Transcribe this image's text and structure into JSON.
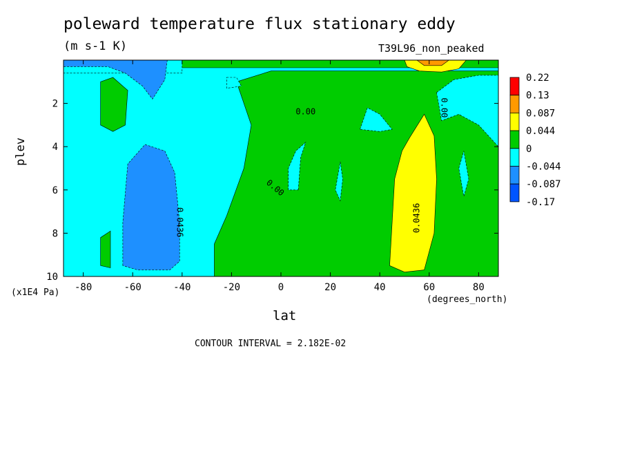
{
  "title": "poleward temperature flux stationary eddy",
  "units": "(m s-1 K)",
  "run_name": "T39L96_non_peaked",
  "contour_interval_text": "CONTOUR INTERVAL = 2.182E-02",
  "chart_data": {
    "type": "heatmap",
    "title": "poleward temperature flux stationary eddy",
    "subtitle": "(m s-1 K)",
    "xlabel": "lat",
    "xunits": "(degrees_north)",
    "ylabel": "plev",
    "yunits": "(x1E4 Pa)",
    "xlim": [
      -88,
      88
    ],
    "ylim": [
      0,
      10
    ],
    "y_inverted": true,
    "x_ticks": [
      -80,
      -60,
      -40,
      -20,
      0,
      20,
      40,
      60,
      80
    ],
    "x_tick_labels": [
      "-80",
      "-60",
      "-40",
      "-20",
      "0",
      "20",
      "40",
      "60",
      "80"
    ],
    "y_ticks": [
      2,
      4,
      6,
      8,
      10
    ],
    "y_tick_labels": [
      "2",
      "4",
      "6",
      "8",
      "10"
    ],
    "background_level": -0.022,
    "colorbar": {
      "labels": [
        "0.22",
        "0.13",
        "0.087",
        "0.044",
        "0",
        "-0.044",
        "-0.087",
        "-0.17"
      ],
      "colors": [
        "#ff0000",
        "#ff9a00",
        "#ffff00",
        "#00cc00",
        "#00ffff",
        "#1e90ff",
        "#0055ff"
      ]
    },
    "regions": [
      {
        "value": 0.02,
        "color": "#00cc00",
        "polygon": [
          [
            -27,
            10
          ],
          [
            -27,
            8.5
          ],
          [
            -22,
            7.2
          ],
          [
            -15,
            5
          ],
          [
            -12,
            3
          ],
          [
            -18,
            1
          ],
          [
            -4,
            0.5
          ],
          [
            20,
            0.5
          ],
          [
            88,
            0.5
          ],
          [
            88,
            10
          ]
        ]
      },
      {
        "value": 0.02,
        "color": "#00cc00",
        "polygon": [
          [
            -88,
            10
          ],
          [
            -88,
            0
          ],
          [
            88,
            0
          ],
          [
            88,
            0.35
          ],
          [
            -88,
            0.35
          ]
        ]
      },
      {
        "value": -0.02,
        "color": "#00ffff",
        "polygon": [
          [
            -88,
            0
          ],
          [
            -40,
            0
          ],
          [
            -40,
            0.6
          ],
          [
            -88,
            0.6
          ]
        ]
      },
      {
        "value": 0.02,
        "color": "#00cc00",
        "polygon": [
          [
            -73,
            3
          ],
          [
            -73,
            1
          ],
          [
            -68,
            0.8
          ],
          [
            -62,
            1.4
          ],
          [
            -63,
            3
          ],
          [
            -68,
            3.3
          ]
        ]
      },
      {
        "value": 0.02,
        "color": "#00cc00",
        "polygon": [
          [
            -73,
            9.5
          ],
          [
            -73,
            8.2
          ],
          [
            -69,
            7.9
          ],
          [
            -69,
            9.6
          ]
        ]
      },
      {
        "value": -0.065,
        "color": "#1e90ff",
        "polygon": [
          [
            -64,
            9.5
          ],
          [
            -64,
            7.5
          ],
          [
            -62,
            4.8
          ],
          [
            -55,
            3.9
          ],
          [
            -47,
            4.2
          ],
          [
            -43,
            5.2
          ],
          [
            -41,
            7.5
          ],
          [
            -41,
            9.3
          ],
          [
            -45,
            9.7
          ],
          [
            -58,
            9.7
          ]
        ]
      },
      {
        "value": -0.065,
        "color": "#1e90ff",
        "polygon": [
          [
            -88,
            0
          ],
          [
            -46,
            0
          ],
          [
            -47,
            0.9
          ],
          [
            -52,
            1.8
          ],
          [
            -56,
            1.2
          ],
          [
            -63,
            0.6
          ],
          [
            -70,
            0.3
          ],
          [
            -88,
            0.3
          ]
        ]
      },
      {
        "value": -0.02,
        "color": "#00ffff",
        "polygon": [
          [
            7,
            6
          ],
          [
            8,
            4.5
          ],
          [
            10,
            3.8
          ],
          [
            6,
            4.2
          ],
          [
            3,
            5
          ],
          [
            3,
            6
          ]
        ]
      },
      {
        "value": -0.02,
        "color": "#00ffff",
        "polygon": [
          [
            -22,
            0.8
          ],
          [
            -18,
            0.8
          ],
          [
            -16,
            1.2
          ],
          [
            -22,
            1.3
          ]
        ]
      },
      {
        "value": -0.02,
        "color": "#00ffff",
        "polygon": [
          [
            32,
            3.2
          ],
          [
            35,
            2.2
          ],
          [
            40,
            2.5
          ],
          [
            45,
            3.2
          ],
          [
            40,
            3.3
          ]
        ]
      },
      {
        "value": -0.02,
        "color": "#00ffff",
        "polygon": [
          [
            24,
            4.7
          ],
          [
            25,
            5.5
          ],
          [
            24,
            6.5
          ],
          [
            22,
            6
          ]
        ]
      },
      {
        "value": -0.02,
        "color": "#00ffff",
        "polygon": [
          [
            63,
            1.5
          ],
          [
            70,
            0.9
          ],
          [
            80,
            0.7
          ],
          [
            88,
            0.7
          ],
          [
            88,
            4
          ],
          [
            80,
            3
          ],
          [
            72,
            2.5
          ],
          [
            65,
            2.8
          ]
        ]
      },
      {
        "value": -0.02,
        "color": "#00ffff",
        "polygon": [
          [
            72,
            5
          ],
          [
            74,
            4.2
          ],
          [
            76,
            5.5
          ],
          [
            74,
            6.3
          ]
        ]
      },
      {
        "value": 0.065,
        "color": "#ffff00",
        "polygon": [
          [
            44,
            9.5
          ],
          [
            45,
            7.5
          ],
          [
            46,
            5.5
          ],
          [
            49,
            4.2
          ],
          [
            52,
            3.6
          ],
          [
            58,
            2.5
          ],
          [
            62,
            3.5
          ],
          [
            63,
            5.5
          ],
          [
            62,
            8
          ],
          [
            58,
            9.7
          ],
          [
            50,
            9.8
          ]
        ]
      },
      {
        "value": 0.065,
        "color": "#ffff00",
        "polygon": [
          [
            50,
            0
          ],
          [
            75,
            0
          ],
          [
            72,
            0.4
          ],
          [
            65,
            0.55
          ],
          [
            56,
            0.5
          ],
          [
            51,
            0.3
          ]
        ]
      },
      {
        "value": 0.11,
        "color": "#ff9a00",
        "polygon": [
          [
            55,
            0
          ],
          [
            68,
            0
          ],
          [
            65,
            0.25
          ],
          [
            58,
            0.25
          ]
        ]
      }
    ],
    "contour_labels": [
      {
        "text": "0.00",
        "lat": 10,
        "plev": 2.5,
        "angle": 0
      },
      {
        "text": "0.00",
        "lat": -3,
        "plev": 6,
        "angle": 40
      },
      {
        "text": "0.00",
        "lat": 65,
        "plev": 2.2,
        "angle": 90
      },
      {
        "text": "0.0436",
        "lat": 56,
        "plev": 7.3,
        "angle": -90
      },
      {
        "text": "0.0436",
        "lat": -42,
        "plev": 7.5,
        "angle": 90
      }
    ]
  }
}
